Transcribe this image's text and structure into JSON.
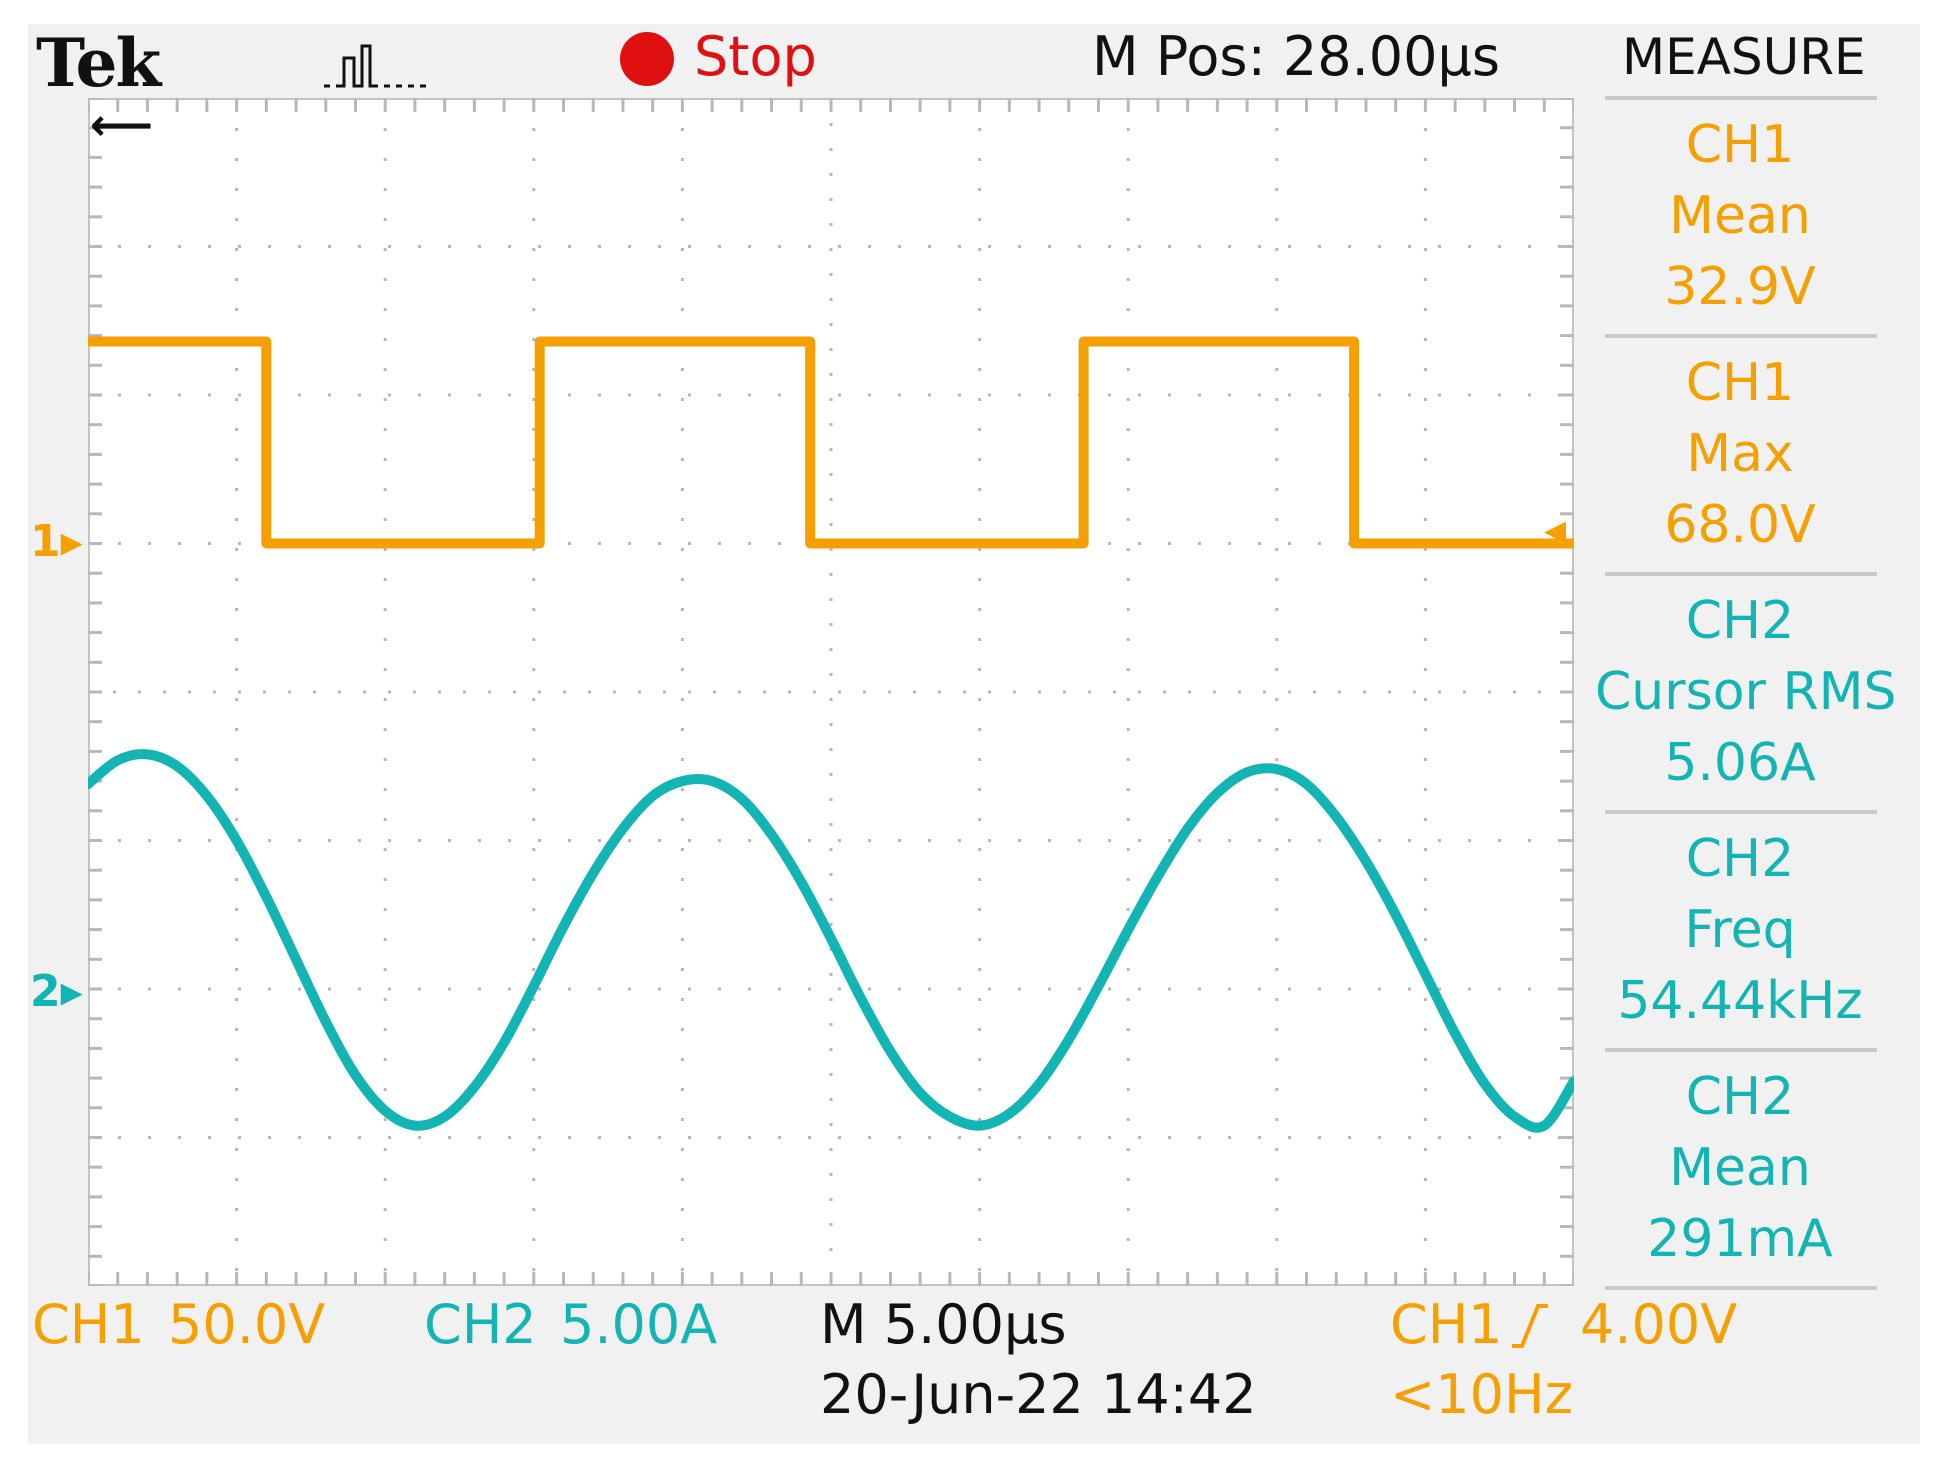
{
  "header": {
    "brand": "Tek",
    "acq_icon": "acquisition-pulse-icon",
    "run_state": "Stop",
    "m_pos": "M Pos: 28.00µs",
    "menu_title": "MEASURE"
  },
  "measurements": [
    {
      "channel": "CH1",
      "type": "Mean",
      "value": "32.9V",
      "color": "#f5a000"
    },
    {
      "channel": "CH1",
      "type": "Max",
      "value": "68.0V",
      "color": "#f5a000"
    },
    {
      "channel": "CH2",
      "type": "Cursor RMS",
      "value": "5.06A",
      "color": "#12b4b4"
    },
    {
      "channel": "CH2",
      "type": "Freq",
      "value": "54.44kHz",
      "color": "#12b4b4"
    },
    {
      "channel": "CH2",
      "type": "Mean",
      "value": "291mA",
      "color": "#12b4b4"
    }
  ],
  "footer": {
    "ch1_label": "CH1",
    "ch1_scale": "50.0V",
    "ch2_label": "CH2",
    "ch2_scale": "5.00A",
    "timebase": "M 5.00µs",
    "datetime": "20-Jun-22 14:42",
    "trigger_source": "CH1",
    "trigger_level": "4.00V",
    "trigger_freq": "<10Hz"
  },
  "markers": {
    "ch1": "1",
    "ch2": "2"
  },
  "colors": {
    "ch1": "#f5a000",
    "ch2": "#12b4b4",
    "stop": "#e01010",
    "grid": "#b8b8b8"
  },
  "chart_data": {
    "type": "line",
    "title": "",
    "xlabel": "",
    "ylabel": "",
    "x_unit": "µs",
    "x_divisions": 10,
    "y_divisions": 8,
    "grid": true,
    "series": [
      {
        "name": "CH1",
        "x": [
          0,
          12.0,
          12.0,
          30.4,
          30.4,
          48.6,
          48.6,
          67.0,
          67.0,
          85.2,
          85.2,
          100
        ],
        "y": [
          68.0,
          68.0,
          0.0,
          0.0,
          68.0,
          68.0,
          0.0,
          0.0,
          68.0,
          68.0,
          0.0,
          0.0
        ]
      },
      {
        "name": "CH2",
        "x": [
          0,
          2,
          4,
          6,
          8,
          10,
          12,
          14,
          16,
          18,
          20,
          22,
          24,
          26,
          28,
          30,
          32,
          34,
          36,
          38,
          40,
          42,
          44,
          46,
          48,
          50,
          52,
          54,
          56,
          58,
          60,
          62,
          64,
          66,
          68,
          70,
          72,
          74,
          76,
          78,
          80,
          82,
          84,
          86,
          88,
          90,
          92,
          94,
          96,
          98,
          100
        ],
        "y": [
          6.9,
          7.7,
          7.9,
          7.5,
          6.5,
          5.0,
          3.1,
          1.0,
          -1.1,
          -2.9,
          -4.1,
          -4.6,
          -4.3,
          -3.3,
          -1.8,
          0.1,
          2.1,
          3.9,
          5.4,
          6.5,
          7.0,
          7.0,
          6.4,
          5.2,
          3.6,
          1.7,
          -0.3,
          -2.1,
          -3.5,
          -4.3,
          -4.6,
          -4.2,
          -3.2,
          -1.7,
          0.1,
          2.0,
          3.8,
          5.4,
          6.6,
          7.3,
          7.4,
          6.9,
          5.8,
          4.3,
          2.5,
          0.5,
          -1.5,
          -3.2,
          -4.3,
          -4.6,
          -3.1
        ]
      }
    ]
  }
}
